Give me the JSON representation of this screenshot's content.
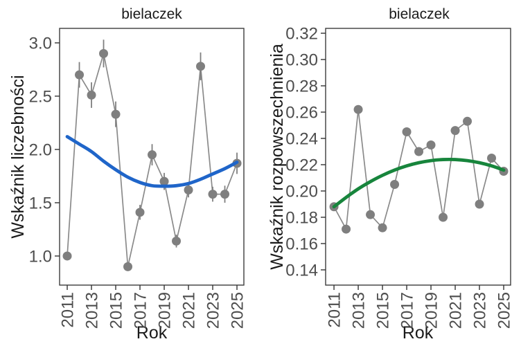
{
  "chart_data": [
    {
      "type": "scatter-line-smooth",
      "title": "bielaczek",
      "xlabel": "Rok",
      "ylabel": "Wskaźnik liczebności",
      "x": [
        2011,
        2012,
        2013,
        2014,
        2015,
        2016,
        2017,
        2018,
        2019,
        2020,
        2021,
        2022,
        2023,
        2024,
        2025
      ],
      "y": [
        1.0,
        2.7,
        2.51,
        2.9,
        2.33,
        0.9,
        1.41,
        1.95,
        1.7,
        1.14,
        1.62,
        2.78,
        1.58,
        1.58,
        1.87
      ],
      "se": [
        0.02,
        0.12,
        0.12,
        0.13,
        0.12,
        0.04,
        0.07,
        0.1,
        0.08,
        0.06,
        0.07,
        0.13,
        0.07,
        0.08,
        0.1
      ],
      "trend": [
        2.12,
        2.05,
        1.98,
        1.89,
        1.81,
        1.74,
        1.69,
        1.66,
        1.655,
        1.66,
        1.68,
        1.72,
        1.77,
        1.82,
        1.88
      ],
      "xticks": [
        2011,
        2013,
        2015,
        2017,
        2019,
        2021,
        2023,
        2025
      ],
      "xtick_labels": [
        "2011",
        "2013",
        "2015",
        "2017",
        "2019",
        "2021",
        "2023",
        "2025"
      ],
      "yticks": [
        1.0,
        1.5,
        2.0,
        2.5,
        3.0
      ],
      "ytick_labels": [
        "1.0",
        "1.5",
        "2.0",
        "2.5",
        "3.0"
      ],
      "xlim": [
        2010.37,
        2025.57
      ],
      "ylim": [
        0.727,
        3.136
      ],
      "grid": false,
      "legend": "none",
      "colors": {
        "point": "#7f7f7f",
        "line": "#8a8a8a",
        "error": "#7f7f7f",
        "trend": "#1f65c9"
      }
    },
    {
      "type": "scatter-line-smooth",
      "title": "bielaczek",
      "xlabel": "Rok",
      "ylabel": "Wskaźnik rozpowszechnienia",
      "x": [
        2011,
        2012,
        2013,
        2014,
        2015,
        2016,
        2017,
        2018,
        2019,
        2020,
        2021,
        2022,
        2023,
        2024,
        2025
      ],
      "y": [
        0.188,
        0.171,
        0.262,
        0.182,
        0.172,
        0.205,
        0.245,
        0.23,
        0.235,
        0.18,
        0.246,
        0.253,
        0.19,
        0.225,
        0.215
      ],
      "se": null,
      "trend": [
        0.188,
        0.1951,
        0.2016,
        0.2071,
        0.2119,
        0.2159,
        0.2191,
        0.2215,
        0.2231,
        0.2239,
        0.2239,
        0.2231,
        0.2215,
        0.2191,
        0.2159
      ],
      "xticks": [
        2011,
        2013,
        2015,
        2017,
        2019,
        2021,
        2023,
        2025
      ],
      "xtick_labels": [
        "2011",
        "2013",
        "2015",
        "2017",
        "2019",
        "2021",
        "2023",
        "2025"
      ],
      "yticks": [
        0.14,
        0.16,
        0.18,
        0.2,
        0.22,
        0.24,
        0.26,
        0.28,
        0.3,
        0.32
      ],
      "ytick_labels": [
        "0.14",
        "0.16",
        "0.18",
        "0.20",
        "0.22",
        "0.24",
        "0.26",
        "0.28",
        "0.30",
        "0.32"
      ],
      "xlim": [
        2010.31,
        2025.57
      ],
      "ylim": [
        0.1284,
        0.3237
      ],
      "grid": false,
      "legend": "none",
      "colors": {
        "point": "#7f7f7f",
        "line": "#8a8a8a",
        "error": "#7f7f7f",
        "trend": "#17853c"
      }
    }
  ]
}
